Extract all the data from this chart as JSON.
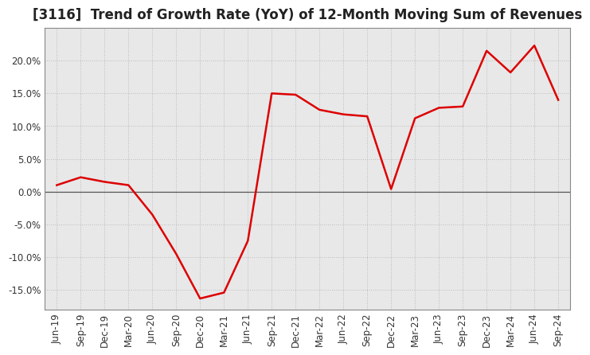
{
  "title": "[3116]  Trend of Growth Rate (YoY) of 12-Month Moving Sum of Revenues",
  "x_labels": [
    "Jun-19",
    "Sep-19",
    "Dec-19",
    "Mar-20",
    "Jun-20",
    "Sep-20",
    "Dec-20",
    "Mar-21",
    "Jun-21",
    "Sep-21",
    "Dec-21",
    "Mar-22",
    "Jun-22",
    "Sep-22",
    "Dec-22",
    "Mar-23",
    "Jun-23",
    "Sep-23",
    "Dec-23",
    "Mar-24",
    "Jun-24",
    "Sep-24"
  ],
  "y_values": [
    1.0,
    2.2,
    1.5,
    1.0,
    -3.5,
    -9.5,
    -16.3,
    -15.4,
    -7.5,
    15.0,
    14.8,
    12.5,
    11.8,
    11.5,
    0.4,
    11.2,
    12.8,
    13.0,
    21.5,
    18.2,
    22.3,
    14.0
  ],
  "line_color": "#dd0000",
  "line_width": 1.8,
  "background_color": "#ffffff",
  "plot_bg_color": "#e8e8e8",
  "grid_color": "#bbbbbb",
  "zero_line_color": "#555555",
  "ylim_min": -18,
  "ylim_max": 25,
  "yticks": [
    -15.0,
    -10.0,
    -5.0,
    0.0,
    5.0,
    10.0,
    15.0,
    20.0
  ],
  "title_fontsize": 12,
  "tick_fontsize": 8.5
}
